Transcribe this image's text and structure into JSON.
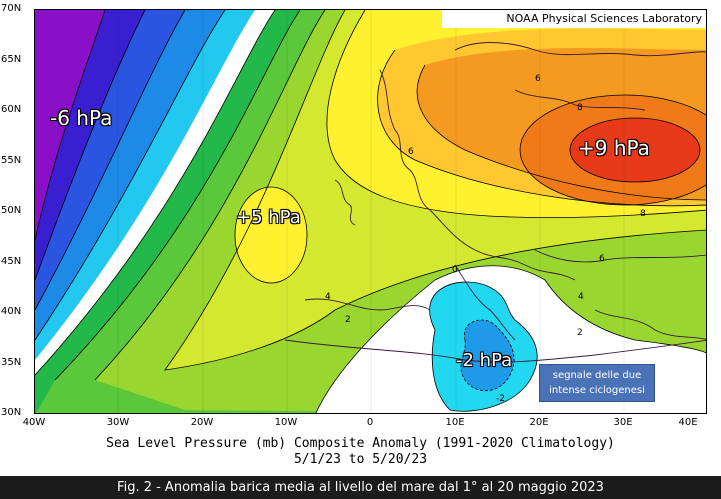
{
  "source_label": "NOAA Physical Sciences Laboratory",
  "latitude_ticks": [
    "70N",
    "65N",
    "60N",
    "55N",
    "50N",
    "45N",
    "40N",
    "35N",
    "30N"
  ],
  "longitude_ticks": [
    "40W",
    "30W",
    "20W",
    "10W",
    "0",
    "10E",
    "20E",
    "30E",
    "40E"
  ],
  "anomaly_labels": {
    "low_atlantic": "-6 hPa",
    "high_east": "+9 hPa",
    "high_atlantic": "+5 hPa",
    "low_italy": "-2 hPa"
  },
  "contour_labels": [
    "6",
    "8",
    "6",
    "8",
    "6",
    "4",
    "2",
    "4",
    "2",
    "0",
    "-2"
  ],
  "callout": {
    "line1": "segnale delle due",
    "line2": "intense ciclogenesi"
  },
  "caption": {
    "title": "Sea Level Pressure (mb) Composite Anomaly (1991-2020 Climatology)",
    "dates": "5/1/23  to 5/20/23"
  },
  "figure_caption": "Fig. 2 - Anomalia barica media al livello del mare dal 1° al 20 maggio 2023",
  "colors": {
    "neg_deep": "#9a10d8",
    "neg_blue": "#2a3fd6",
    "neg_light": "#22c8f0",
    "zero": "#ffffff",
    "pos_green": "#22b84a",
    "pos_lime": "#9ad630",
    "pos_yellow": "#fff030",
    "pos_orange": "#f08a18",
    "pos_red": "#e83a18",
    "callout_bg": "#4a73b7"
  }
}
